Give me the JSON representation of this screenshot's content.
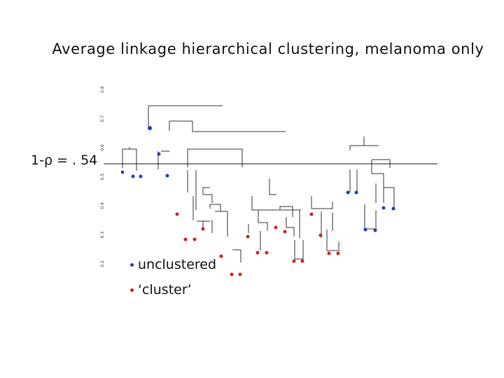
{
  "title": "Average linkage hierarchical clustering, melanoma only",
  "cut_label": "1-ρ = . 54",
  "axis": {
    "ticks": [
      {
        "value": 0.8,
        "label": "0.8"
      },
      {
        "value": 0.7,
        "label": "0.7"
      },
      {
        "value": 0.6,
        "label": "0.6"
      },
      {
        "value": 0.5,
        "label": "0.5"
      },
      {
        "value": 0.4,
        "label": "0.4"
      },
      {
        "value": 0.3,
        "label": "0.3"
      },
      {
        "value": 0.2,
        "label": "0.2"
      }
    ]
  },
  "legend": [
    {
      "label": "unclustered",
      "color": "#1a3ccc"
    },
    {
      "label": "‘cluster’",
      "color": "#cc2222"
    }
  ],
  "colors": {
    "unclustered": "#1a3ccc",
    "cluster": "#cc2222"
  }
}
